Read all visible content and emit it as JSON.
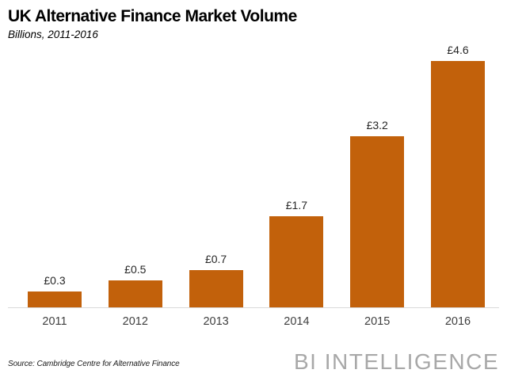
{
  "title": "UK Alternative Finance Market Volume",
  "subtitle": "Billions, 2011-2016",
  "source": "Source: Cambridge Centre for Alternative Finance",
  "brand": "BI INTELLIGENCE",
  "chart_data": {
    "type": "bar",
    "categories": [
      "2011",
      "2012",
      "2013",
      "2014",
      "2015",
      "2016"
    ],
    "values": [
      0.3,
      0.5,
      0.7,
      1.7,
      3.2,
      4.6
    ],
    "value_labels": [
      "£0.3",
      "£0.5",
      "£0.7",
      "£1.7",
      "£3.2",
      "£4.6"
    ],
    "title": "UK Alternative Finance Market Volume",
    "subtitle": "Billions, 2011-2016",
    "xlabel": "",
    "ylabel": "",
    "unit": "£ billions",
    "bar_color": "#c2610b",
    "axis_line_color": "#d9d9d9",
    "grid": false,
    "legend": false
  }
}
